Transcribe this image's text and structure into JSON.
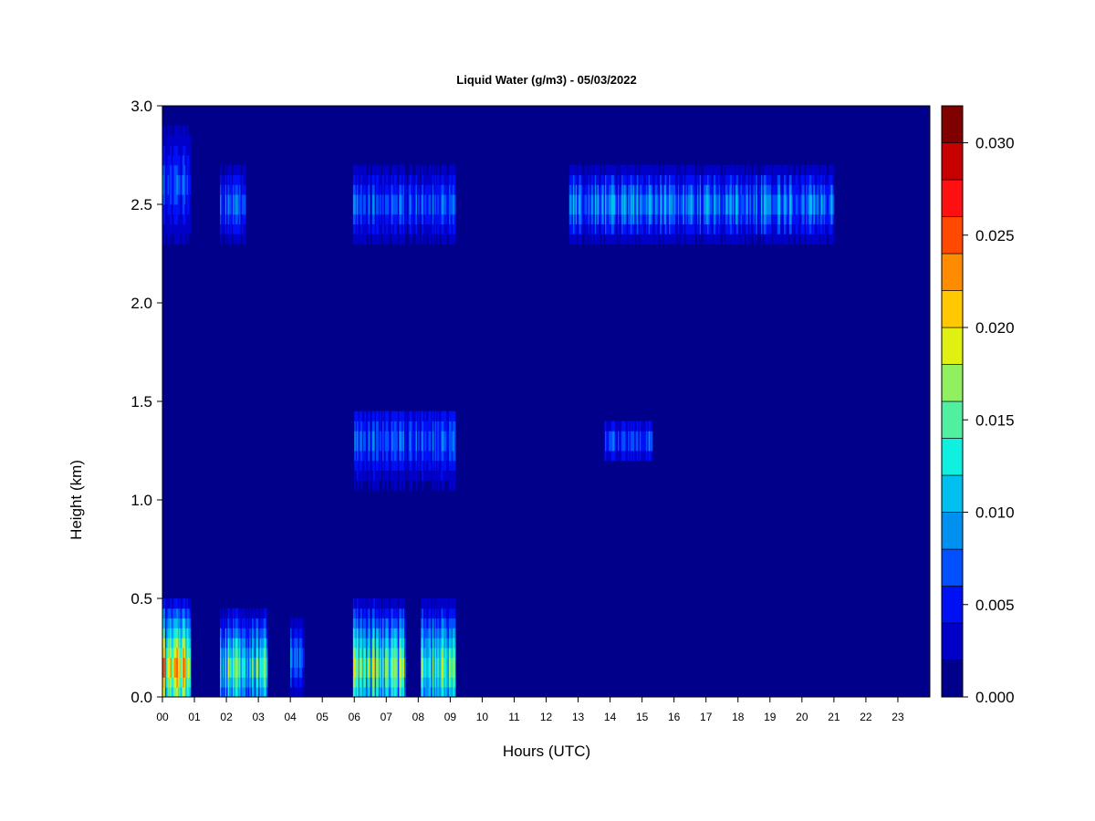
{
  "chart_data": {
    "type": "heatmap",
    "title": "Liquid Water (g/m3) - 05/03/2022",
    "xlabel": "Hours (UTC)",
    "ylabel": "Height (km)",
    "xlim": [
      0,
      24
    ],
    "ylim": [
      0,
      3.0
    ],
    "x_ticks": [
      "00",
      "01",
      "02",
      "03",
      "04",
      "05",
      "06",
      "07",
      "08",
      "09",
      "10",
      "11",
      "12",
      "13",
      "14",
      "15",
      "16",
      "17",
      "18",
      "19",
      "20",
      "21",
      "22",
      "23"
    ],
    "y_ticks": [
      "0.0",
      "0.5",
      "1.0",
      "1.5",
      "2.0",
      "2.5",
      "3.0"
    ],
    "grid": false,
    "colorbar": {
      "min": 0.0,
      "max": 0.032,
      "tick_values": [
        0.0,
        0.005,
        0.01,
        0.015,
        0.02,
        0.025,
        0.03
      ],
      "tick_labels": [
        "0.000",
        "0.005",
        "0.010",
        "0.015",
        "0.020",
        "0.025",
        "0.030"
      ],
      "levels": [
        {
          "from": 0.0,
          "to": 0.002,
          "color": "#00008B"
        },
        {
          "from": 0.002,
          "to": 0.004,
          "color": "#0000C8"
        },
        {
          "from": 0.004,
          "to": 0.006,
          "color": "#0010F5"
        },
        {
          "from": 0.006,
          "to": 0.008,
          "color": "#0050FF"
        },
        {
          "from": 0.008,
          "to": 0.01,
          "color": "#0090F0"
        },
        {
          "from": 0.01,
          "to": 0.012,
          "color": "#00C0F0"
        },
        {
          "from": 0.012,
          "to": 0.014,
          "color": "#10F0E0"
        },
        {
          "from": 0.014,
          "to": 0.016,
          "color": "#50F0A0"
        },
        {
          "from": 0.016,
          "to": 0.018,
          "color": "#90F060"
        },
        {
          "from": 0.018,
          "to": 0.02,
          "color": "#E0F010"
        },
        {
          "from": 0.02,
          "to": 0.022,
          "color": "#FFC800"
        },
        {
          "from": 0.022,
          "to": 0.024,
          "color": "#FF8C00"
        },
        {
          "from": 0.024,
          "to": 0.026,
          "color": "#FF4800"
        },
        {
          "from": 0.026,
          "to": 0.028,
          "color": "#FF1010"
        },
        {
          "from": 0.028,
          "to": 0.03,
          "color": "#C80000"
        },
        {
          "from": 0.03,
          "to": 0.032,
          "color": "#800000"
        }
      ]
    },
    "background_value": 0.0,
    "features": [
      {
        "t0": 0.0,
        "t1": 0.9,
        "h0": 0.0,
        "h1": 0.55,
        "peak": 0.028,
        "h_peak": 0.15
      },
      {
        "t0": 1.8,
        "t1": 3.3,
        "h0": 0.0,
        "h1": 0.5,
        "peak": 0.02,
        "h_peak": 0.15
      },
      {
        "t0": 4.0,
        "t1": 4.45,
        "h0": 0.0,
        "h1": 0.45,
        "peak": 0.013,
        "h_peak": 0.2
      },
      {
        "t0": 5.95,
        "t1": 7.6,
        "h0": 0.0,
        "h1": 0.55,
        "peak": 0.022,
        "h_peak": 0.15
      },
      {
        "t0": 8.1,
        "t1": 9.15,
        "h0": 0.0,
        "h1": 0.55,
        "peak": 0.02,
        "h_peak": 0.15
      },
      {
        "t0": 0.0,
        "t1": 0.9,
        "h0": 2.3,
        "h1": 3.0,
        "peak": 0.009,
        "h_peak": 2.6
      },
      {
        "t0": 1.8,
        "t1": 2.6,
        "h0": 2.25,
        "h1": 2.75,
        "peak": 0.011,
        "h_peak": 2.5
      },
      {
        "t0": 5.95,
        "t1": 9.15,
        "h0": 2.25,
        "h1": 2.75,
        "peak": 0.01,
        "h_peak": 2.5
      },
      {
        "t0": 12.7,
        "t1": 21.0,
        "h0": 2.25,
        "h1": 2.75,
        "peak": 0.013,
        "h_peak": 2.5
      },
      {
        "t0": 6.0,
        "t1": 9.15,
        "h0": 1.0,
        "h1": 1.45,
        "peak": 0.01,
        "h_peak": 1.3
      },
      {
        "t0": 13.8,
        "t1": 15.3,
        "h0": 1.15,
        "h1": 1.45,
        "peak": 0.01,
        "h_peak": 1.3
      }
    ]
  }
}
